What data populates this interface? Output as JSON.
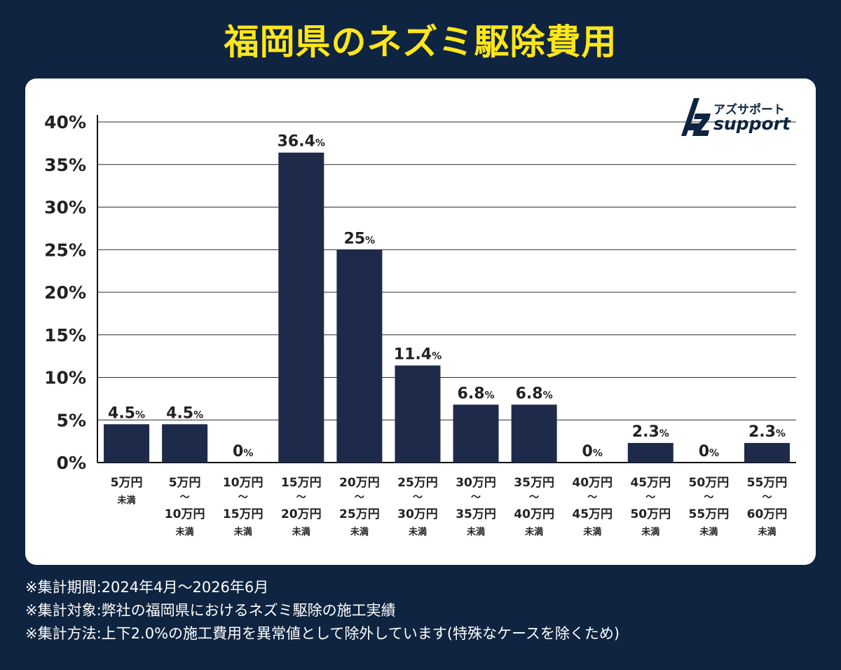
{
  "title": "福岡県のネズミ駆除費用",
  "logo": {
    "kana": "アズサポート",
    "text": "support",
    "icon": "az-monogram-icon"
  },
  "chart_data": {
    "type": "bar",
    "categories": [
      {
        "top": "5万円",
        "bottom": "",
        "suffix": "未満"
      },
      {
        "top": "5万円",
        "bottom": "10万円",
        "suffix": "未満"
      },
      {
        "top": "10万円",
        "bottom": "15万円",
        "suffix": "未満"
      },
      {
        "top": "15万円",
        "bottom": "20万円",
        "suffix": "未満"
      },
      {
        "top": "20万円",
        "bottom": "25万円",
        "suffix": "未満"
      },
      {
        "top": "25万円",
        "bottom": "30万円",
        "suffix": "未満"
      },
      {
        "top": "30万円",
        "bottom": "35万円",
        "suffix": "未満"
      },
      {
        "top": "35万円",
        "bottom": "40万円",
        "suffix": "未満"
      },
      {
        "top": "40万円",
        "bottom": "45万円",
        "suffix": "未満"
      },
      {
        "top": "45万円",
        "bottom": "50万円",
        "suffix": "未満"
      },
      {
        "top": "50万円",
        "bottom": "55万円",
        "suffix": "未満"
      },
      {
        "top": "55万円",
        "bottom": "60万円",
        "suffix": "未満"
      }
    ],
    "values": [
      4.5,
      4.5,
      0,
      36.4,
      25,
      11.4,
      6.8,
      6.8,
      0,
      2.3,
      0,
      2.3
    ],
    "value_labels": [
      "4.5",
      "4.5",
      "0",
      "36.4",
      "25",
      "11.4",
      "6.8",
      "6.8",
      "0",
      "2.3",
      "0",
      "2.3"
    ],
    "value_unit": "%",
    "range_separator": "～",
    "ylim": [
      0,
      40
    ],
    "yticks": [
      "0%",
      "5%",
      "10%",
      "15%",
      "20%",
      "25%",
      "30%",
      "35%",
      "40%"
    ],
    "grid": true,
    "bar_color": "#1e2a4a"
  },
  "footnotes": [
    "※集計期間:2024年4月～2026年6月",
    "※集計対象:弊社の福岡県におけるネズミ駆除の施工実績",
    "※集計方法:上下2.0%の施工費用を異常値として除外しています(特殊なケースを除くため)"
  ]
}
